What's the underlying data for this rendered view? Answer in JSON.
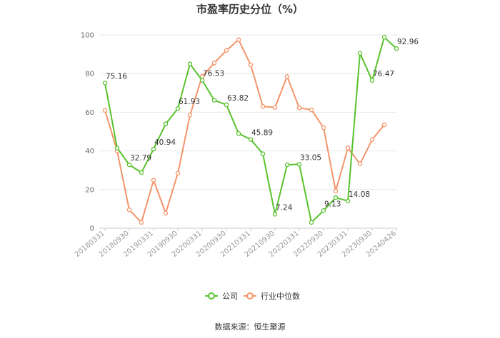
{
  "chart_data": {
    "type": "line",
    "title": "市盈率历史分位（%）",
    "ylim": [
      0,
      100
    ],
    "yticks": [
      0,
      20,
      40,
      60,
      80,
      100
    ],
    "grid": true,
    "legend_position": "bottom",
    "x": [
      "20180331",
      "20180630",
      "20180930",
      "20181231",
      "20190331",
      "20190630",
      "20190930",
      "20191231",
      "20200331",
      "20200630",
      "20200930",
      "20201231",
      "20210331",
      "20210630",
      "20210930",
      "20211231",
      "20220331",
      "20220630",
      "20220930",
      "20221231",
      "20230331",
      "20230630",
      "20230930",
      "20231231",
      "20240426"
    ],
    "x_tick_labels": [
      "20180331",
      "20180930",
      "20190331",
      "20190930",
      "20200331",
      "20200930",
      "20210331",
      "20210930",
      "20220331",
      "20220930",
      "20230331",
      "20230930",
      "20240426"
    ],
    "series": [
      {
        "name": "公司",
        "color": "#58c22d",
        "values": [
          75.16,
          41.5,
          32.79,
          28.8,
          40.94,
          54.0,
          61.93,
          85.0,
          76.53,
          66.2,
          63.82,
          49.0,
          45.89,
          38.5,
          7.24,
          32.8,
          33.05,
          3.0,
          9.13,
          15.8,
          14.08,
          90.5,
          76.47,
          98.8,
          92.96
        ],
        "labels": {
          "0": "75.16",
          "2": "32.79",
          "4": "40.94",
          "6": "61.93",
          "8": "76.53",
          "10": "63.82",
          "12": "45.89",
          "14": "7.24",
          "16": "33.05",
          "18": "9.13",
          "20": "14.08",
          "22": "76.47",
          "24": "92.96"
        }
      },
      {
        "name": "行业中位数",
        "color": "#f4946a",
        "values": [
          61.0,
          40.0,
          9.5,
          3.0,
          24.8,
          7.8,
          28.5,
          58.5,
          78.5,
          85.5,
          92.0,
          97.5,
          84.5,
          63.0,
          62.5,
          78.5,
          62.3,
          61.2,
          52.0,
          19.2,
          41.5,
          33.3,
          45.8,
          53.5,
          null
        ]
      }
    ]
  },
  "source_text": "数据来源：恒生聚源"
}
